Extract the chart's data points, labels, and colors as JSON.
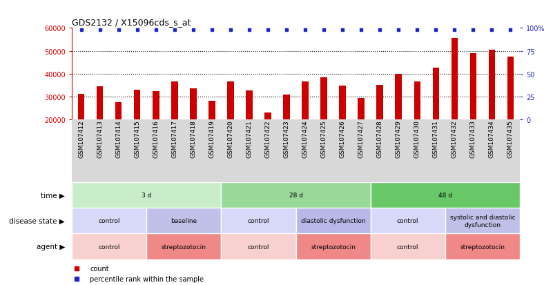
{
  "title": "GDS2132 / X15096cds_s_at",
  "samples": [
    "GSM107412",
    "GSM107413",
    "GSM107414",
    "GSM107415",
    "GSM107416",
    "GSM107417",
    "GSM107418",
    "GSM107419",
    "GSM107420",
    "GSM107421",
    "GSM107422",
    "GSM107423",
    "GSM107424",
    "GSM107425",
    "GSM107426",
    "GSM107427",
    "GSM107428",
    "GSM107429",
    "GSM107430",
    "GSM107431",
    "GSM107432",
    "GSM107433",
    "GSM107434",
    "GSM107435"
  ],
  "counts": [
    31000,
    34500,
    27500,
    32800,
    32200,
    36500,
    33500,
    28000,
    36500,
    32500,
    23000,
    30800,
    36500,
    38500,
    34800,
    29200,
    35200,
    40000,
    36500,
    42500,
    55500,
    49000,
    50500,
    47500
  ],
  "ylim_left": [
    20000,
    60000
  ],
  "yticks_left": [
    20000,
    30000,
    40000,
    50000,
    60000
  ],
  "ylim_right": [
    0,
    100
  ],
  "yticks_right": [
    0,
    25,
    50,
    75,
    100
  ],
  "bar_color": "#cc0000",
  "dot_color": "#2222cc",
  "left_axis_color": "#cc0000",
  "right_axis_color": "#2222cc",
  "chart_bg": "#ffffff",
  "xticklabel_bg": "#d8d8d8",
  "time_row": {
    "label": "time",
    "segments": [
      {
        "text": "3 d",
        "start": 0,
        "end": 8,
        "color": "#c8edc8"
      },
      {
        "text": "28 d",
        "start": 8,
        "end": 16,
        "color": "#98d898"
      },
      {
        "text": "48 d",
        "start": 16,
        "end": 24,
        "color": "#68c868"
      }
    ]
  },
  "disease_row": {
    "label": "disease state",
    "segments": [
      {
        "text": "control",
        "start": 0,
        "end": 4,
        "color": "#d8d8f8"
      },
      {
        "text": "baseline",
        "start": 4,
        "end": 8,
        "color": "#c0c0e8"
      },
      {
        "text": "control",
        "start": 8,
        "end": 12,
        "color": "#d8d8f8"
      },
      {
        "text": "diastolic dysfunction",
        "start": 12,
        "end": 16,
        "color": "#b8b8e8"
      },
      {
        "text": "control",
        "start": 16,
        "end": 20,
        "color": "#d8d8f8"
      },
      {
        "text": "systolic and diastolic\ndysfunction",
        "start": 20,
        "end": 24,
        "color": "#c0c0e8"
      }
    ]
  },
  "agent_row": {
    "label": "agent",
    "segments": [
      {
        "text": "control",
        "start": 0,
        "end": 4,
        "color": "#f8d0d0"
      },
      {
        "text": "streptozotocin",
        "start": 4,
        "end": 8,
        "color": "#f08888"
      },
      {
        "text": "control",
        "start": 8,
        "end": 12,
        "color": "#f8d0d0"
      },
      {
        "text": "streptozotocin",
        "start": 12,
        "end": 16,
        "color": "#f08888"
      },
      {
        "text": "control",
        "start": 16,
        "end": 20,
        "color": "#f8d0d0"
      },
      {
        "text": "streptozotocin",
        "start": 20,
        "end": 24,
        "color": "#f08888"
      }
    ]
  },
  "legend_count_color": "#cc0000",
  "legend_percentile_color": "#2222cc",
  "fig_width": 8.01,
  "fig_height": 4.14,
  "dpi": 100
}
